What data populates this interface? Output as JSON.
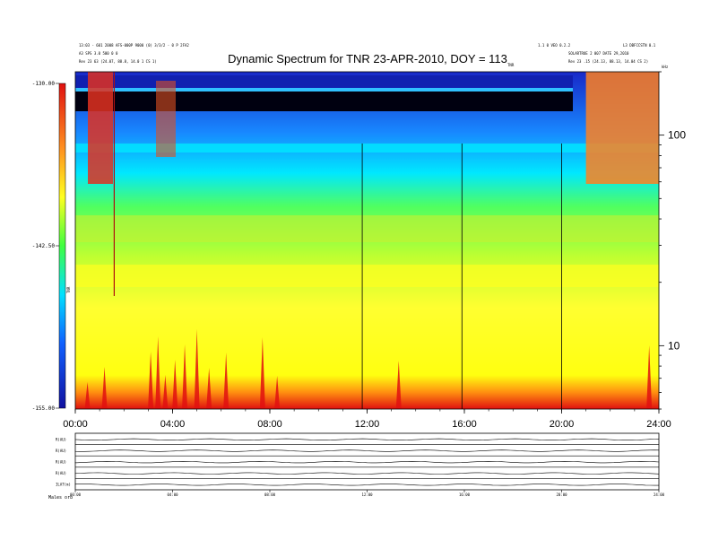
{
  "chart_data": {
    "type": "heatmap",
    "title": "Dynamic Spectrum for TNR 23-APR-2010, DOY = 113",
    "header_left": [
      "13:03 - 601 2008 AFS-000P 9000 (0) 3/3/2 - 0 P 2FA2",
      "A3 SPS 3.0 500 0 0",
      "Rev   23 63 (24.07, 88.8, 14.0 1 CS 1)"
    ],
    "header_right": [
      "1.1 0 VEO 0.2.2",
      "L3 DBFCCSTN 0.1",
      "SOLARTRUE 2 007 DATE 29,2010",
      "Rev   23 .15 (24.13, 88.13, 14.04 CS 2)"
    ],
    "header_center_small": "TNR",
    "x_ticks": [
      "00:00",
      "04:00",
      "08:00",
      "12:00",
      "16:00",
      "20:00",
      "24:00"
    ],
    "x_range_hours": [
      0,
      24
    ],
    "y_axis": {
      "scale": "log",
      "range": [
        5,
        200
      ],
      "ticks": [
        "10",
        "100"
      ],
      "unit_label": "kHz"
    },
    "colorbar": {
      "ticks": [
        "-130.00",
        "-142.50",
        "-155.00"
      ],
      "range": [
        -155,
        -130
      ],
      "label": "TNR"
    },
    "vertical_markers_hours": [
      11.8,
      15.9,
      20.0
    ],
    "stripe_marker_hours": 1.6,
    "colors": {
      "low": "#1010a0",
      "mid_low": "#00e0ff",
      "mid": "#7fff40",
      "mid_high": "#ffff20",
      "high": "#e01010"
    }
  },
  "ephemeris": {
    "labels": [
      "R(AU)",
      "R(AU)",
      "R(AU)",
      "R(AU)",
      "ILAT(m)"
    ],
    "footer_label": "Males  orb",
    "x_ticks": [
      "00:00",
      "04:00",
      "08:00",
      "12:00",
      "16:00",
      "20:00",
      "24:00"
    ]
  }
}
